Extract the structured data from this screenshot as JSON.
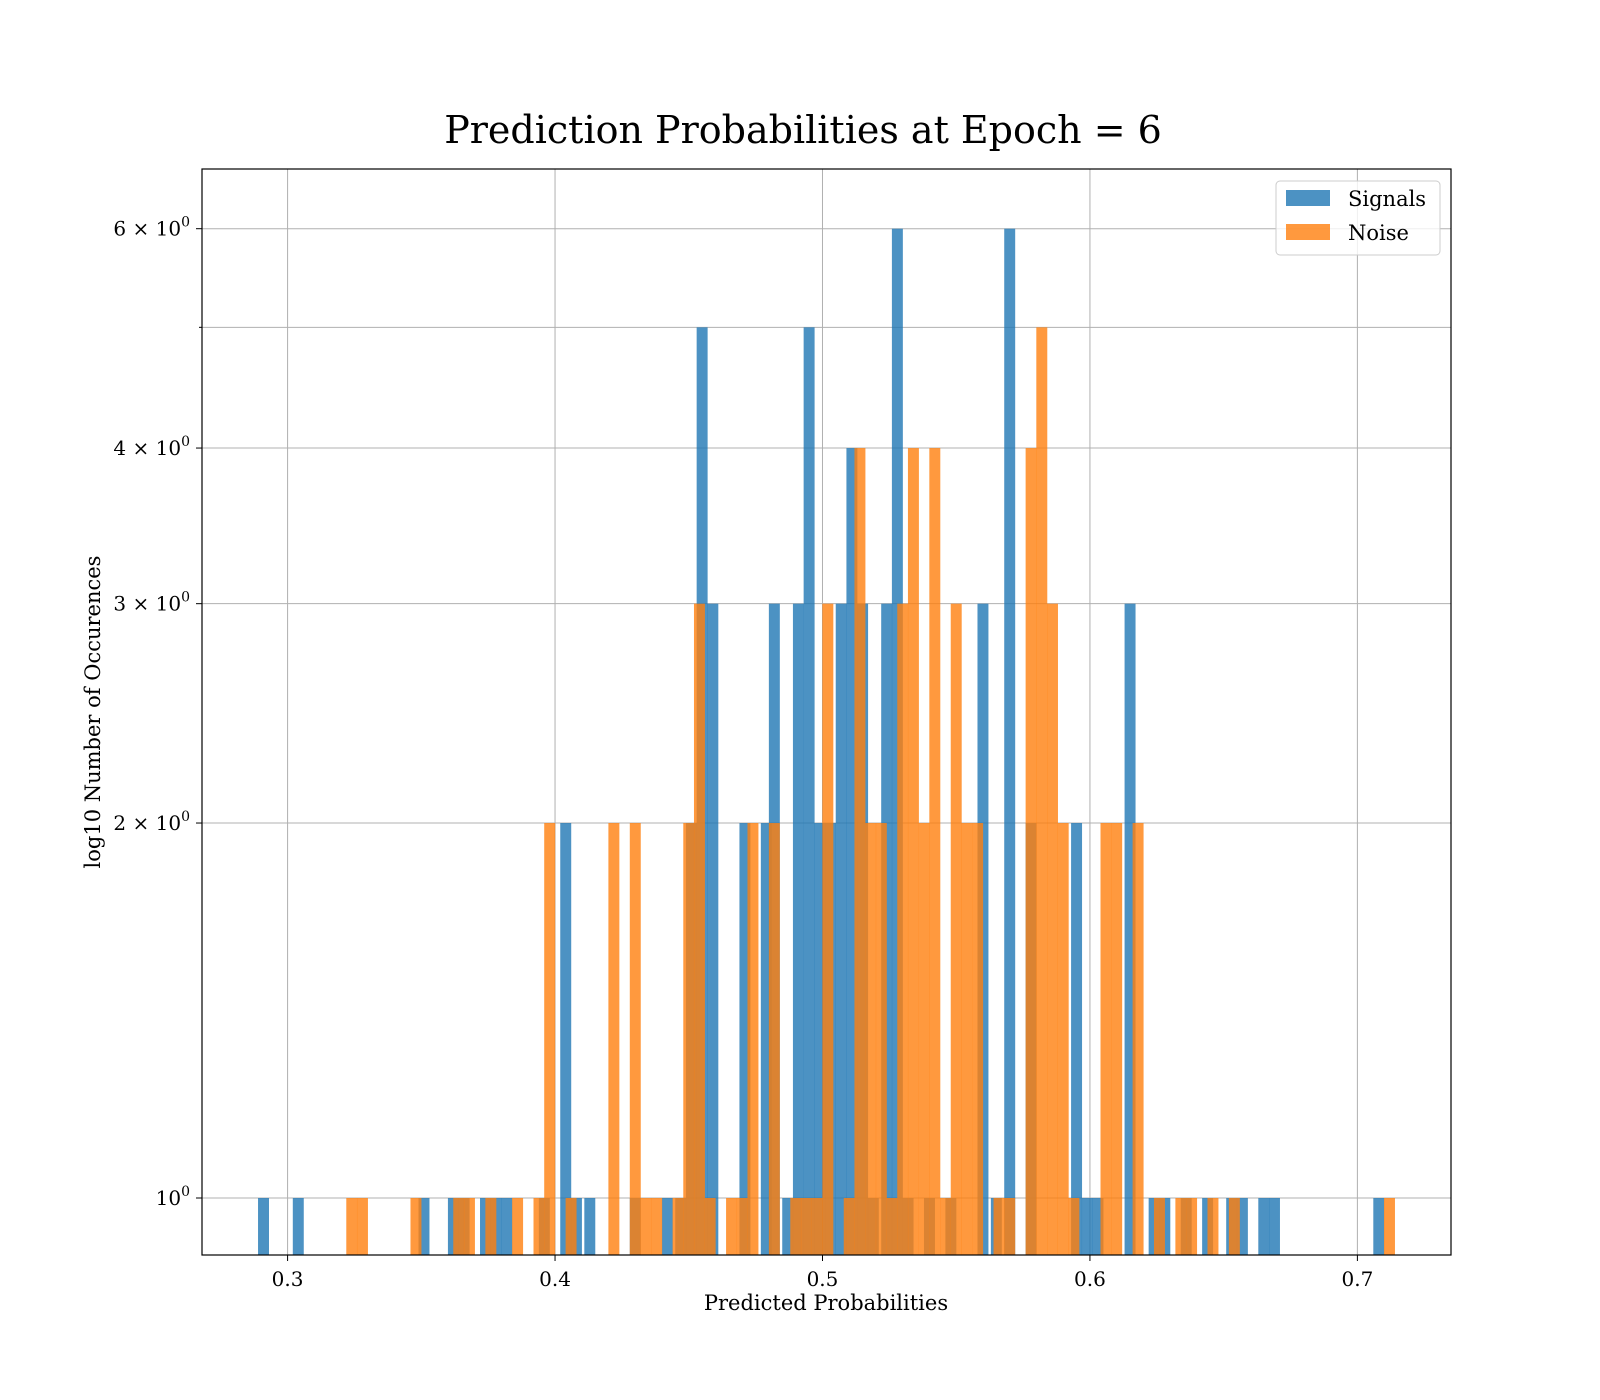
{
  "chart_data": {
    "type": "bar",
    "title": "Prediction Probabilities at Epoch = 6",
    "xlabel": "Predicted Probabilities",
    "ylabel": "log10 Number of Occurences",
    "y_scale": "log",
    "xlim": [
      0.268,
      0.735
    ],
    "ylim": [
      0.9,
      6.7
    ],
    "grid": true,
    "legend_position": "top-right",
    "x_ticks": [
      {
        "value": 0.3,
        "label": "0.3"
      },
      {
        "value": 0.4,
        "label": "0.4"
      },
      {
        "value": 0.5,
        "label": "0.5"
      },
      {
        "value": 0.6,
        "label": "0.6"
      },
      {
        "value": 0.7,
        "label": "0.7"
      }
    ],
    "y_ticks": [
      {
        "value": 1,
        "base": "10",
        "exp": "0"
      },
      {
        "value": 2,
        "base": "2 × 10",
        "exp": "0"
      },
      {
        "value": 3,
        "base": "3 × 10",
        "exp": "0"
      },
      {
        "value": 4,
        "base": "4 × 10",
        "exp": "0"
      },
      {
        "value": 6,
        "base": "6 × 10",
        "exp": "0"
      }
    ],
    "y_minor_gridlines": [
      5
    ],
    "bin_width": 0.0041,
    "series": [
      {
        "name": "Signals",
        "color": "#1f77b4",
        "opacity": 0.8,
        "bins": [
          {
            "x": 0.291,
            "count": 1
          },
          {
            "x": 0.304,
            "count": 1
          },
          {
            "x": 0.351,
            "count": 1
          },
          {
            "x": 0.362,
            "count": 1
          },
          {
            "x": 0.366,
            "count": 1
          },
          {
            "x": 0.374,
            "count": 1
          },
          {
            "x": 0.378,
            "count": 1
          },
          {
            "x": 0.382,
            "count": 1
          },
          {
            "x": 0.396,
            "count": 1
          },
          {
            "x": 0.404,
            "count": 2
          },
          {
            "x": 0.408,
            "count": 1
          },
          {
            "x": 0.413,
            "count": 1
          },
          {
            "x": 0.43,
            "count": 1
          },
          {
            "x": 0.442,
            "count": 1
          },
          {
            "x": 0.447,
            "count": 1
          },
          {
            "x": 0.451,
            "count": 2
          },
          {
            "x": 0.455,
            "count": 5
          },
          {
            "x": 0.459,
            "count": 3
          },
          {
            "x": 0.471,
            "count": 2
          },
          {
            "x": 0.479,
            "count": 2
          },
          {
            "x": 0.482,
            "count": 3
          },
          {
            "x": 0.487,
            "count": 1
          },
          {
            "x": 0.491,
            "count": 3
          },
          {
            "x": 0.495,
            "count": 5
          },
          {
            "x": 0.499,
            "count": 2
          },
          {
            "x": 0.503,
            "count": 2
          },
          {
            "x": 0.507,
            "count": 3
          },
          {
            "x": 0.511,
            "count": 4
          },
          {
            "x": 0.515,
            "count": 3
          },
          {
            "x": 0.519,
            "count": 1
          },
          {
            "x": 0.524,
            "count": 3
          },
          {
            "x": 0.528,
            "count": 6
          },
          {
            "x": 0.532,
            "count": 1
          },
          {
            "x": 0.54,
            "count": 1
          },
          {
            "x": 0.548,
            "count": 1
          },
          {
            "x": 0.56,
            "count": 3
          },
          {
            "x": 0.565,
            "count": 1
          },
          {
            "x": 0.57,
            "count": 6
          },
          {
            "x": 0.578,
            "count": 2
          },
          {
            "x": 0.595,
            "count": 2
          },
          {
            "x": 0.599,
            "count": 1
          },
          {
            "x": 0.603,
            "count": 1
          },
          {
            "x": 0.615,
            "count": 3
          },
          {
            "x": 0.624,
            "count": 1
          },
          {
            "x": 0.628,
            "count": 1
          },
          {
            "x": 0.636,
            "count": 1
          },
          {
            "x": 0.644,
            "count": 1
          },
          {
            "x": 0.653,
            "count": 1
          },
          {
            "x": 0.657,
            "count": 1
          },
          {
            "x": 0.665,
            "count": 1
          },
          {
            "x": 0.669,
            "count": 1
          },
          {
            "x": 0.708,
            "count": 1
          }
        ]
      },
      {
        "name": "Noise",
        "color": "#ff7f0e",
        "opacity": 0.8,
        "bins": [
          {
            "x": 0.324,
            "count": 1
          },
          {
            "x": 0.328,
            "count": 1
          },
          {
            "x": 0.348,
            "count": 1
          },
          {
            "x": 0.364,
            "count": 1
          },
          {
            "x": 0.368,
            "count": 1
          },
          {
            "x": 0.376,
            "count": 1
          },
          {
            "x": 0.386,
            "count": 1
          },
          {
            "x": 0.394,
            "count": 1
          },
          {
            "x": 0.398,
            "count": 2
          },
          {
            "x": 0.406,
            "count": 1
          },
          {
            "x": 0.422,
            "count": 2
          },
          {
            "x": 0.43,
            "count": 2
          },
          {
            "x": 0.434,
            "count": 1
          },
          {
            "x": 0.438,
            "count": 1
          },
          {
            "x": 0.446,
            "count": 1
          },
          {
            "x": 0.45,
            "count": 2
          },
          {
            "x": 0.454,
            "count": 3
          },
          {
            "x": 0.458,
            "count": 1
          },
          {
            "x": 0.466,
            "count": 1
          },
          {
            "x": 0.47,
            "count": 1
          },
          {
            "x": 0.474,
            "count": 2
          },
          {
            "x": 0.482,
            "count": 2
          },
          {
            "x": 0.49,
            "count": 1
          },
          {
            "x": 0.494,
            "count": 1
          },
          {
            "x": 0.498,
            "count": 1
          },
          {
            "x": 0.502,
            "count": 3
          },
          {
            "x": 0.51,
            "count": 1
          },
          {
            "x": 0.514,
            "count": 4
          },
          {
            "x": 0.518,
            "count": 2
          },
          {
            "x": 0.522,
            "count": 2
          },
          {
            "x": 0.526,
            "count": 1
          },
          {
            "x": 0.53,
            "count": 3
          },
          {
            "x": 0.534,
            "count": 4
          },
          {
            "x": 0.538,
            "count": 2
          },
          {
            "x": 0.542,
            "count": 4
          },
          {
            "x": 0.546,
            "count": 1
          },
          {
            "x": 0.55,
            "count": 3
          },
          {
            "x": 0.554,
            "count": 2
          },
          {
            "x": 0.558,
            "count": 2
          },
          {
            "x": 0.566,
            "count": 1
          },
          {
            "x": 0.57,
            "count": 1
          },
          {
            "x": 0.578,
            "count": 4
          },
          {
            "x": 0.582,
            "count": 5
          },
          {
            "x": 0.586,
            "count": 3
          },
          {
            "x": 0.59,
            "count": 2
          },
          {
            "x": 0.594,
            "count": 1
          },
          {
            "x": 0.606,
            "count": 2
          },
          {
            "x": 0.61,
            "count": 2
          },
          {
            "x": 0.618,
            "count": 2
          },
          {
            "x": 0.626,
            "count": 1
          },
          {
            "x": 0.634,
            "count": 1
          },
          {
            "x": 0.638,
            "count": 1
          },
          {
            "x": 0.646,
            "count": 1
          },
          {
            "x": 0.654,
            "count": 1
          },
          {
            "x": 0.712,
            "count": 1
          }
        ]
      }
    ]
  }
}
